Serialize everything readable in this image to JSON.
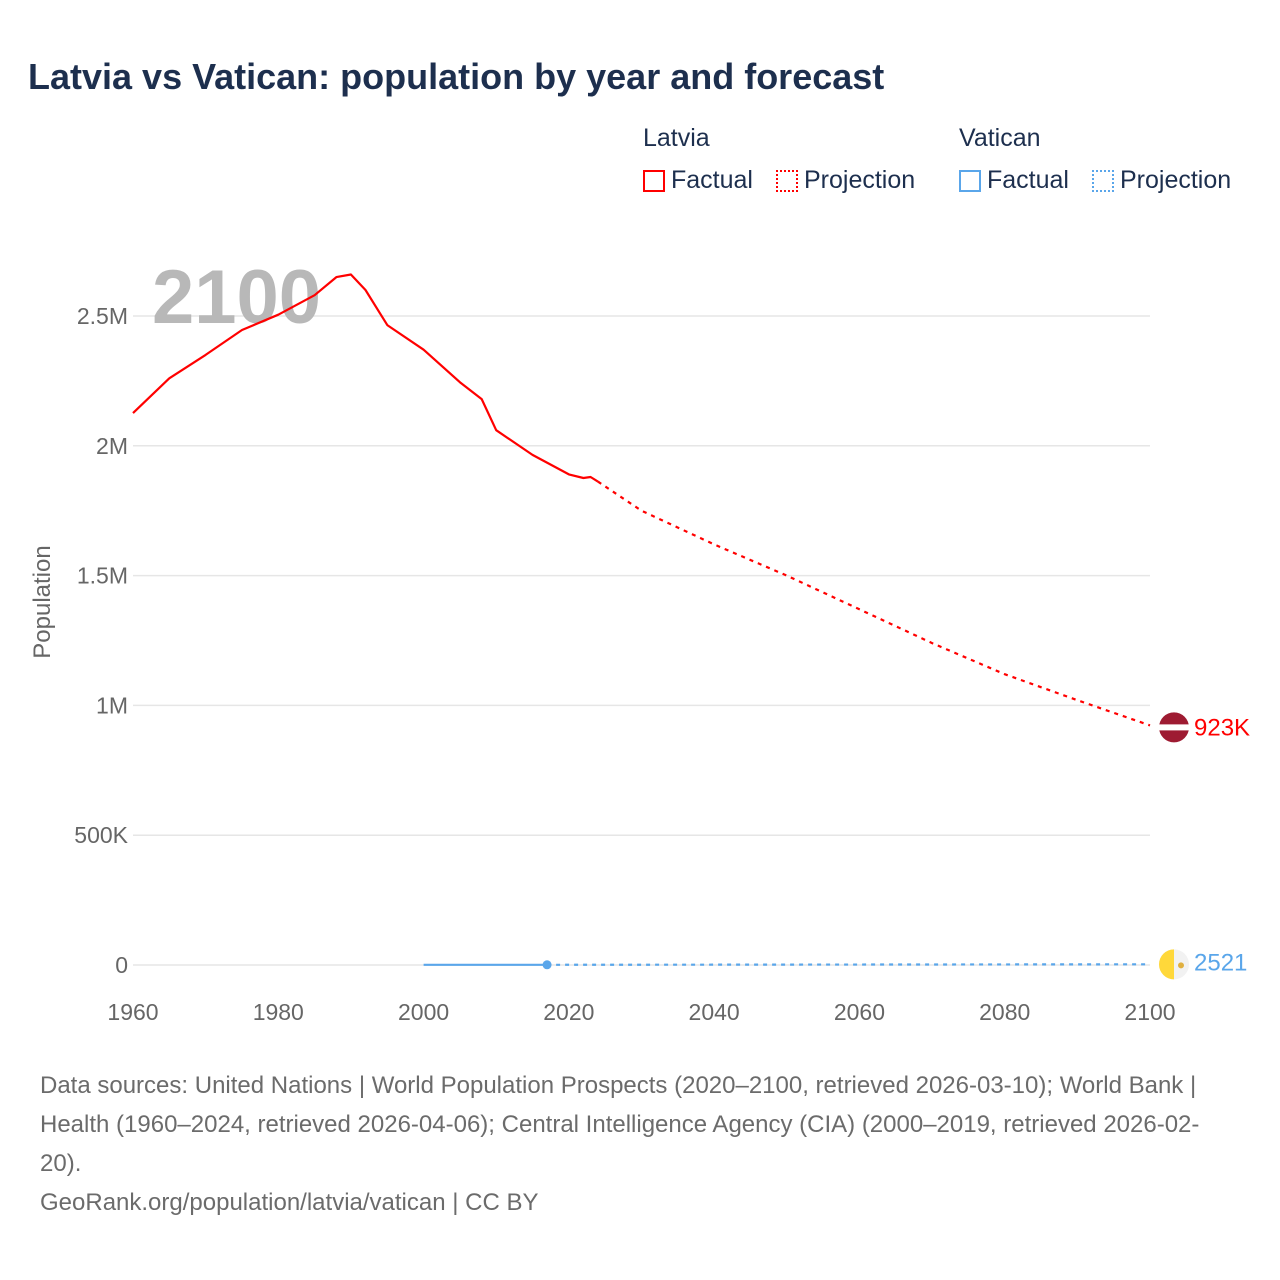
{
  "title": "Latvia vs Vatican: population by year and forecast",
  "legend": {
    "groups": [
      {
        "name": "Latvia",
        "color": "#ff0000",
        "items": [
          "Factual",
          "Projection"
        ]
      },
      {
        "name": "Vatican",
        "color": "#5aa6ea",
        "items": [
          "Factual",
          "Projection"
        ]
      }
    ]
  },
  "footer": {
    "sources": "Data sources: United Nations | World Population Prospects (2020–2100, retrieved 2026-03-10); World Bank | Health (1960–2024, retrieved 2026-04-06); Central Intelligence Agency (CIA) (2000–2019, retrieved 2026-02-20).",
    "credit": "GeoRank.org/population/latvia/vatican | CC BY"
  },
  "chart_data": {
    "type": "line",
    "title": "Latvia vs Vatican: population by year and forecast",
    "year_watermark": "2100",
    "xlabel": "",
    "ylabel": "Population",
    "xlim": [
      1960,
      2100
    ],
    "ylim": [
      0,
      2750000
    ],
    "x_ticks": [
      1960,
      1980,
      2000,
      2020,
      2040,
      2060,
      2080,
      2100
    ],
    "y_ticks": [
      0,
      500000,
      1000000,
      1500000,
      2000000,
      2500000
    ],
    "y_tick_labels": [
      "0",
      "500K",
      "1M",
      "1.5M",
      "2M",
      "2.5M"
    ],
    "grid": true,
    "legend_position": "top-right",
    "series": [
      {
        "name": "Latvia",
        "kind": "Factual",
        "color": "#ff0000",
        "x": [
          1960,
          1965,
          1970,
          1975,
          1980,
          1985,
          1988,
          1990,
          1992,
          1995,
          2000,
          2005,
          2008,
          2010,
          2015,
          2020,
          2022,
          2023,
          2024
        ],
        "y": [
          2126000,
          2260000,
          2350000,
          2446000,
          2505000,
          2580000,
          2650000,
          2660000,
          2600000,
          2465000,
          2370000,
          2245000,
          2180000,
          2060000,
          1965000,
          1890000,
          1876000,
          1880000,
          1862000
        ]
      },
      {
        "name": "Latvia",
        "kind": "Projection",
        "color": "#ff0000",
        "x": [
          2024,
          2030,
          2040,
          2050,
          2060,
          2070,
          2080,
          2090,
          2100
        ],
        "y": [
          1862000,
          1750000,
          1620000,
          1500000,
          1370000,
          1240000,
          1120000,
          1020000,
          923000
        ]
      },
      {
        "name": "Vatican",
        "kind": "Factual",
        "color": "#5aa6ea",
        "x": [
          2000,
          2005,
          2010,
          2017
        ],
        "y": [
          800,
          800,
          800,
          800
        ]
      },
      {
        "name": "Vatican",
        "kind": "Projection",
        "color": "#5aa6ea",
        "x": [
          2017,
          2050,
          2100
        ],
        "y": [
          800,
          1600,
          2521
        ]
      }
    ],
    "end_labels": [
      {
        "series": "Latvia",
        "text": "923K",
        "value": 923000,
        "color": "#ff0000"
      },
      {
        "series": "Vatican",
        "text": "2521",
        "value": 2521,
        "color": "#5aa6ea"
      }
    ]
  }
}
